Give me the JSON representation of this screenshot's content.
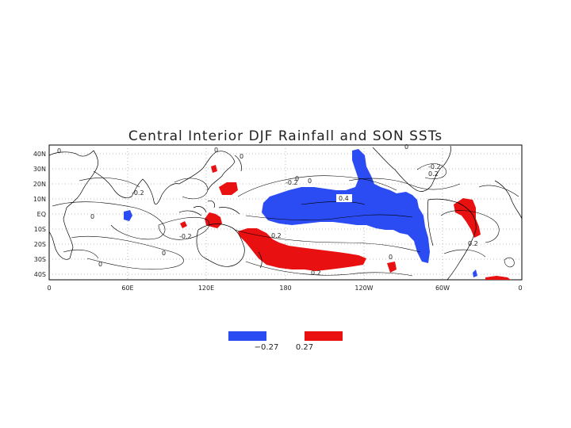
{
  "title": "Central Interior DJF Rainfall and SON SSTs",
  "colors": {
    "negative": "#2b4cf2",
    "positive": "#e81010",
    "contour": "#000000",
    "grid": "#888888"
  },
  "axes": {
    "x_ticks": [
      "0",
      "60E",
      "120E",
      "180",
      "120W",
      "60W",
      "0"
    ],
    "y_ticks": [
      "40N",
      "30N",
      "20N",
      "10N",
      "EQ",
      "10S",
      "20S",
      "30S",
      "40S"
    ]
  },
  "contour_labels": [
    "0",
    "0",
    "0",
    "0",
    "-0.2",
    "0",
    "-0.2",
    "-0.2",
    "0",
    "0.4",
    "0.2",
    "0.2",
    "0",
    "0.2",
    "0.2",
    "0",
    "0",
    "-0.2",
    "0"
  ],
  "legend": {
    "negative_label": "−0.27",
    "positive_label": "0.27"
  }
}
